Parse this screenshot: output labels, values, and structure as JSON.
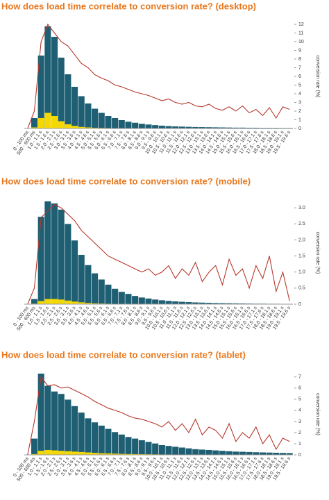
{
  "chart_data": [
    {
      "type": "bar-line",
      "title": "How does load time correlate to conversion rate? (desktop)",
      "y2_label": "conversion rate (%)",
      "categories": [
        "0 - 100 ms",
        "500 - 600 ms",
        "1.0 - 1.1 s",
        "1.5 - 1.6 s",
        "2.0 - 2.1 s",
        "2.5 - 2.6 s",
        "3.0 - 3.1 s",
        "3.5 - 3.6 s",
        "4.0 - 4.1 s",
        "4.5 - 4.6 s",
        "5.0 - 5.1 s",
        "5.5 - 5.6 s",
        "6.0 - 6.1 s",
        "6.5 - 6.6 s",
        "7.0 - 7.1 s",
        "7.5 - 7.6 s",
        "8.0 - 8.1 s",
        "8.5 - 8.6 s",
        "9.0 - 9.1 s",
        "9.5 - 9.6 s",
        "10.0 - 10.1 s",
        "10.5 - 10.6 s",
        "11.0 - 11.1 s",
        "11.5 - 11.6 s",
        "12.0 - 12.1 s",
        "12.5 - 12.6 s",
        "13.0 - 13.1 s",
        "13.5 - 13.6 s",
        "14.0 - 14.1 s",
        "14.5 - 14.6 s",
        "15.0 - 15.1 s",
        "15.5 - 15.6 s",
        "16.0 - 16.1 s",
        "16.5 - 16.6 s",
        "17.0 - 17.1 s",
        "17.5 - 17.6 s",
        "18.0 - 18.1 s",
        "18.5 - 18.6 s",
        "19.0 - 19.1 s",
        "19.5 - 19.6 s"
      ],
      "ylim": [
        0,
        100
      ],
      "y2lim": [
        0,
        12
      ],
      "y2ticks": [
        0,
        1,
        2,
        3,
        4,
        5,
        6,
        7,
        8,
        9,
        10,
        11,
        12
      ],
      "series": [
        {
          "color": "#1f5f73",
          "values": [
            0,
            10,
            70,
            98,
            88,
            68,
            52,
            40,
            31,
            24,
            19,
            15,
            12,
            10,
            8,
            6.5,
            5.5,
            4.5,
            3.8,
            3.2,
            2.7,
            2.3,
            2,
            1.8,
            1.6,
            1.4,
            1.3,
            1.2,
            1.1,
            1,
            0.9,
            0.8,
            0.8,
            0.7,
            0.7,
            0.6,
            0.6,
            0.6,
            0.5,
            0.5
          ]
        },
        {
          "color": "#f5d800",
          "values": [
            0,
            1,
            10,
            15,
            12,
            7,
            4,
            2.5,
            1.5,
            1,
            0.7,
            0.5,
            0.4,
            0.3,
            0.3,
            0.2,
            0.2,
            0.2,
            0.1,
            0.1,
            0.1,
            0.1,
            0.1,
            0.1,
            0.1,
            0.1,
            0.1,
            0.1,
            0.1,
            0.1,
            0.1,
            0.1,
            0.1,
            0.1,
            0.1,
            0.1,
            0.1,
            0.1,
            0.1,
            0.1
          ]
        },
        {
          "color": "#b5372b",
          "axis": "y2",
          "values": [
            0,
            2,
            10,
            12,
            11,
            10,
            9.5,
            8.5,
            7.5,
            7,
            6.2,
            5.8,
            5.5,
            5,
            4.8,
            4.5,
            4.2,
            4,
            3.8,
            3.5,
            3.2,
            3.4,
            3,
            2.8,
            3,
            2.6,
            2.5,
            2.8,
            2.3,
            2.1,
            2.5,
            2,
            2.6,
            1.8,
            2.2,
            1.5,
            2.4,
            1.2,
            2.5,
            2.2
          ]
        }
      ]
    },
    {
      "type": "bar-line",
      "title": "How does load time correlate to conversion rate? (mobile)",
      "y2_label": "conversion rate (%)",
      "categories": [
        "0 - 100 ms",
        "500 - 600 ms",
        "1.0 - 1.1 s",
        "1.5 - 1.6 s",
        "2.0 - 2.1 s",
        "2.5 - 2.6 s",
        "3.0 - 3.1 s",
        "3.5 - 3.6 s",
        "4.0 - 4.1 s",
        "4.5 - 4.6 s",
        "5.0 - 5.1 s",
        "5.5 - 5.6 s",
        "6.0 - 6.1 s",
        "6.5 - 6.6 s",
        "7.0 - 7.1 s",
        "7.5 - 7.6 s",
        "8.0 - 8.1 s",
        "8.5 - 8.6 s",
        "9.0 - 9.1 s",
        "9.5 - 9.6 s",
        "10.0 - 10.1 s",
        "10.5 - 10.6 s",
        "11.0 - 11.1 s",
        "11.5 - 11.6 s",
        "12.0 - 12.1 s",
        "12.5 - 12.6 s",
        "13.0 - 13.1 s",
        "13.5 - 13.6 s",
        "14.0 - 14.1 s",
        "14.5 - 14.6 s",
        "15.0 - 15.1 s",
        "15.5 - 15.6 s",
        "16.0 - 16.1 s",
        "16.5 - 16.6 s",
        "17.0 - 17.1 s",
        "17.5 - 17.6 s",
        "18.0 - 18.1 s",
        "18.5 - 18.6 s",
        "19.0 - 19.1 s",
        "19.5 - 19.6 s"
      ],
      "ylim": [
        0,
        100
      ],
      "y2lim": [
        0,
        3.2
      ],
      "y2ticks": [
        0,
        0.5,
        {
          "value": 1,
          "label": "1.0"
        },
        1.5,
        {
          "value": 2,
          "label": "2.0"
        },
        2.5,
        {
          "value": 3,
          "label": "3.0"
        }
      ],
      "series": [
        {
          "color": "#1f5f73",
          "values": [
            0,
            5,
            85,
            100,
            98,
            92,
            78,
            62,
            48,
            38,
            30,
            24,
            19,
            15,
            12,
            10,
            8,
            6.5,
            5.5,
            4.5,
            3.8,
            3.2,
            2.7,
            2.3,
            2,
            1.7,
            1.5,
            1.3,
            1.1,
            1,
            0.9,
            0.8,
            0.7,
            0.6,
            0.5,
            0.5,
            0.4,
            0.4,
            0.3,
            0.3
          ]
        },
        {
          "color": "#f5d800",
          "values": [
            0,
            0.5,
            3,
            5,
            5,
            4.5,
            3.5,
            2.5,
            1.8,
            1.2,
            0.8,
            0.6,
            0.4,
            0.3,
            0.2,
            0.2,
            0.1,
            0.1,
            0.1,
            0.1,
            0.1,
            0.1,
            0.1,
            0.1,
            0.1,
            0.1,
            0.1,
            0.1,
            0.1,
            0.1,
            0.1,
            0.1,
            0.1,
            0.1,
            0.1,
            0.1,
            0.1,
            0.1,
            0.1,
            0.1
          ]
        },
        {
          "color": "#b5372b",
          "axis": "y2",
          "values": [
            0,
            0.5,
            2.7,
            2.9,
            3.1,
            3,
            2.8,
            2.6,
            2.3,
            2.1,
            1.9,
            1.7,
            1.5,
            1.4,
            1.3,
            1.2,
            1.1,
            1,
            1.1,
            0.9,
            1,
            1.2,
            0.8,
            1.1,
            0.9,
            1.3,
            0.7,
            1,
            1.2,
            0.6,
            1.4,
            0.9,
            1.1,
            0.5,
            1.2,
            0.8,
            1.5,
            0.4,
            1,
            0.1
          ]
        }
      ]
    },
    {
      "type": "bar-line",
      "title": "How does load time correlate to conversion rate? (tablet)",
      "y2_label": "conversion rate (%)",
      "categories": [
        "0 - 100 ms",
        "500 - 600 ms",
        "1.0 - 1.1 s",
        "1.5 - 1.6 s",
        "2.0 - 2.1 s",
        "2.5 - 2.6 s",
        "3.0 - 3.1 s",
        "3.5 - 3.6 s",
        "4.0 - 4.1 s",
        "4.5 - 4.6 s",
        "5.0 - 5.1 s",
        "5.5 - 5.6 s",
        "6.0 - 6.1 s",
        "6.5 - 6.6 s",
        "7.0 - 7.1 s",
        "7.5 - 7.6 s",
        "8.0 - 8.1 s",
        "8.5 - 8.6 s",
        "9.0 - 9.1 s",
        "9.5 - 9.6 s",
        "10.0 - 10.1 s",
        "10.5 - 10.6 s",
        "11.0 - 11.1 s",
        "11.5 - 11.6 s",
        "12.0 - 12.1 s",
        "12.5 - 12.6 s",
        "13.0 - 13.1 s",
        "13.5 - 13.6 s",
        "14.0 - 14.1 s",
        "14.5 - 14.6 s",
        "15.0 - 15.1 s",
        "15.5 - 15.6 s",
        "16.0 - 16.1 s",
        "16.5 - 16.6 s",
        "17.0 - 17.1 s",
        "17.5 - 17.6 s",
        "18.0 - 18.1 s",
        "18.5 - 18.6 s",
        "19.0 - 19.1 s",
        "19.5 - 19.6 s"
      ],
      "ylim": [
        0,
        100
      ],
      "y2lim": [
        0,
        7.3
      ],
      "y2ticks": [
        0,
        1,
        2,
        3,
        4,
        5,
        6,
        7
      ],
      "series": [
        {
          "color": "#1f5f73",
          "values": [
            0,
            20,
            100,
            85,
            78,
            75,
            68,
            60,
            52,
            45,
            40,
            36,
            32,
            28,
            25,
            22,
            20,
            18,
            16,
            14,
            12,
            11,
            10,
            9,
            8,
            7,
            6.5,
            6,
            5.5,
            5,
            4.5,
            4,
            3.8,
            3.5,
            3.2,
            3,
            2.8,
            2.6,
            2.4,
            2.2
          ]
        },
        {
          "color": "#f5d800",
          "values": [
            0,
            1,
            5,
            6,
            5.5,
            5,
            4.5,
            4,
            3.5,
            3,
            2.5,
            2,
            1.8,
            1.5,
            1.2,
            1,
            0.9,
            0.8,
            0.7,
            0.6,
            0.5,
            0.5,
            0.4,
            0.4,
            0.3,
            0.3,
            0.3,
            0.2,
            0.2,
            0.2,
            0.2,
            0.2,
            0.1,
            0.1,
            0.1,
            0.1,
            0.1,
            0.1,
            0.1,
            0.1
          ]
        },
        {
          "color": "#b5372b",
          "axis": "y2",
          "values": [
            0,
            3,
            7,
            6.2,
            6.3,
            6,
            6.1,
            5.8,
            5.5,
            5.2,
            4.8,
            4.5,
            4.2,
            4,
            3.8,
            3.5,
            3.3,
            3.2,
            3,
            2.8,
            2.5,
            3,
            2.2,
            2.8,
            2,
            3.2,
            1.8,
            2.5,
            2.2,
            1.5,
            2.8,
            1.2,
            2,
            1.5,
            2.5,
            1,
            1.8,
            0.5,
            1.5,
            1.2
          ]
        }
      ]
    }
  ]
}
